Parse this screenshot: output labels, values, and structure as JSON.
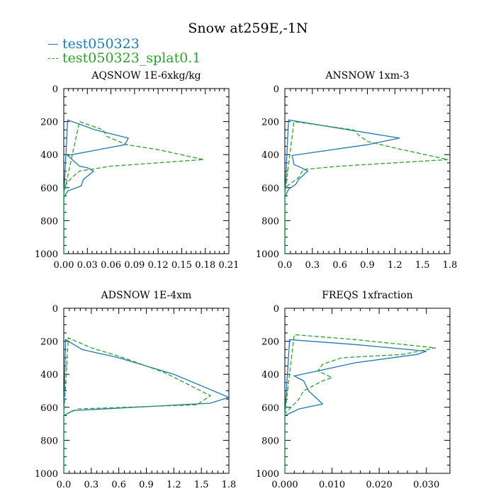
{
  "title": "Snow at259E,-1N",
  "legend": [
    {
      "label": "test050323",
      "color": "#1f77b4",
      "dash": false
    },
    {
      "label": "test050323_splat0.1",
      "color": "#2ca02c",
      "dash": true
    }
  ],
  "chart_data": [
    {
      "type": "line",
      "title": "AQSNOW  1E-6xkg/kg",
      "xlim": [
        0,
        0.21
      ],
      "ylim": [
        1000,
        0
      ],
      "xticks": [
        "0.00",
        "0.03",
        "0.06",
        "0.09",
        "0.12",
        "0.15",
        "0.18",
        "0.21"
      ],
      "xtick_values": [
        0,
        0.03,
        0.06,
        0.09,
        0.12,
        0.15,
        0.18,
        0.21
      ],
      "yticks": [
        "0",
        "200",
        "400",
        "600",
        "800",
        "1000"
      ],
      "ytick_values": [
        0,
        200,
        400,
        600,
        800,
        1000
      ],
      "series": [
        {
          "name": "test050323",
          "x": [
            0,
            0,
            0.005,
            0.04,
            0.082,
            0.078,
            0.005,
            0.02,
            0.03,
            0.038,
            0.025,
            0.022,
            0.005,
            0,
            0
          ],
          "y": [
            1000,
            660,
            190,
            250,
            300,
            340,
            405,
            470,
            480,
            500,
            550,
            590,
            620,
            660,
            1000
          ]
        },
        {
          "name": "test050323_splat0.1",
          "x": [
            0,
            0,
            0.02,
            0.05,
            0.055,
            0.08,
            0.12,
            0.178,
            0.06,
            0.02,
            0.01,
            0,
            0
          ],
          "y": [
            1000,
            640,
            200,
            250,
            290,
            340,
            370,
            430,
            470,
            500,
            540,
            600,
            1000
          ]
        }
      ]
    },
    {
      "type": "line",
      "title": "ANSNOW  1xm-3",
      "xlim": [
        0,
        1.8
      ],
      "ylim": [
        1000,
        0
      ],
      "xticks": [
        "0.0",
        "0.3",
        "0.6",
        "0.9",
        "1.2",
        "1.5",
        "1.8"
      ],
      "xtick_values": [
        0,
        0.3,
        0.6,
        0.9,
        1.2,
        1.5,
        1.8
      ],
      "yticks": [
        "0",
        "200",
        "400",
        "600",
        "800",
        "1000"
      ],
      "ytick_values": [
        0,
        200,
        400,
        600,
        800,
        1000
      ],
      "series": [
        {
          "name": "test050323",
          "x": [
            0,
            0,
            0.04,
            0.7,
            1.25,
            0.9,
            0.08,
            0.1,
            0.18,
            0.25,
            0.15,
            0.12,
            0.04,
            0,
            0
          ],
          "y": [
            1000,
            660,
            190,
            250,
            300,
            340,
            405,
            460,
            480,
            500,
            550,
            580,
            610,
            660,
            1000
          ]
        },
        {
          "name": "test050323_splat0.1",
          "x": [
            0,
            0,
            0.1,
            0.75,
            0.8,
            0.9,
            1.2,
            1.78,
            0.6,
            0.2,
            0.15,
            0,
            0
          ],
          "y": [
            1000,
            640,
            200,
            250,
            280,
            320,
            360,
            430,
            470,
            490,
            540,
            600,
            1000
          ]
        }
      ]
    },
    {
      "type": "line",
      "title": "ADSNOW  1E-4xm",
      "xlim": [
        0,
        1.8
      ],
      "ylim": [
        1000,
        0
      ],
      "xticks": [
        "0.0",
        "0.3",
        "0.6",
        "0.9",
        "1.2",
        "1.5",
        "1.8"
      ],
      "xtick_values": [
        0,
        0.3,
        0.6,
        0.9,
        1.2,
        1.5,
        1.8
      ],
      "yticks": [
        "0",
        "200",
        "400",
        "600",
        "800",
        "1000"
      ],
      "ytick_values": [
        0,
        200,
        400,
        600,
        800,
        1000
      ],
      "series": [
        {
          "name": "test050323",
          "x": [
            0,
            0,
            0.02,
            0.2,
            0.6,
            1.2,
            1.8,
            1.6,
            0.1,
            0,
            0
          ],
          "y": [
            1000,
            650,
            190,
            250,
            300,
            400,
            540,
            575,
            620,
            650,
            1000
          ]
        },
        {
          "name": "test050323_splat0.1",
          "x": [
            0,
            0,
            0.05,
            0.3,
            0.6,
            1.1,
            1.6,
            1.45,
            0.15,
            0,
            0
          ],
          "y": [
            1000,
            650,
            180,
            240,
            290,
            390,
            530,
            585,
            610,
            650,
            1000
          ]
        }
      ]
    },
    {
      "type": "line",
      "title": "FREQS  1xfraction",
      "xlim": [
        0,
        0.035
      ],
      "ylim": [
        1000,
        0
      ],
      "xticks": [
        "0.000",
        "0.010",
        "0.020",
        "0.030"
      ],
      "xtick_values": [
        0,
        0.01,
        0.02,
        0.03
      ],
      "yticks": [
        "0",
        "200",
        "400",
        "600",
        "800",
        "1000"
      ],
      "ytick_values": [
        0,
        200,
        400,
        600,
        800,
        1000
      ],
      "series": [
        {
          "name": "test050323",
          "x": [
            0,
            0,
            0.001,
            0.015,
            0.03,
            0.028,
            0.015,
            0.007,
            0.002,
            0.004,
            0.005,
            0.008,
            0.003,
            0,
            0
          ],
          "y": [
            1000,
            650,
            190,
            220,
            260,
            280,
            330,
            380,
            410,
            440,
            500,
            580,
            610,
            650,
            1000
          ]
        },
        {
          "name": "test050323_splat0.1",
          "x": [
            0,
            0,
            0.002,
            0.015,
            0.032,
            0.025,
            0.012,
            0.008,
            0.007,
            0.01,
            0.008,
            0.004,
            0.003,
            0,
            0
          ],
          "y": [
            1000,
            640,
            160,
            190,
            240,
            280,
            300,
            340,
            380,
            420,
            440,
            500,
            550,
            640,
            1000
          ]
        }
      ]
    }
  ]
}
